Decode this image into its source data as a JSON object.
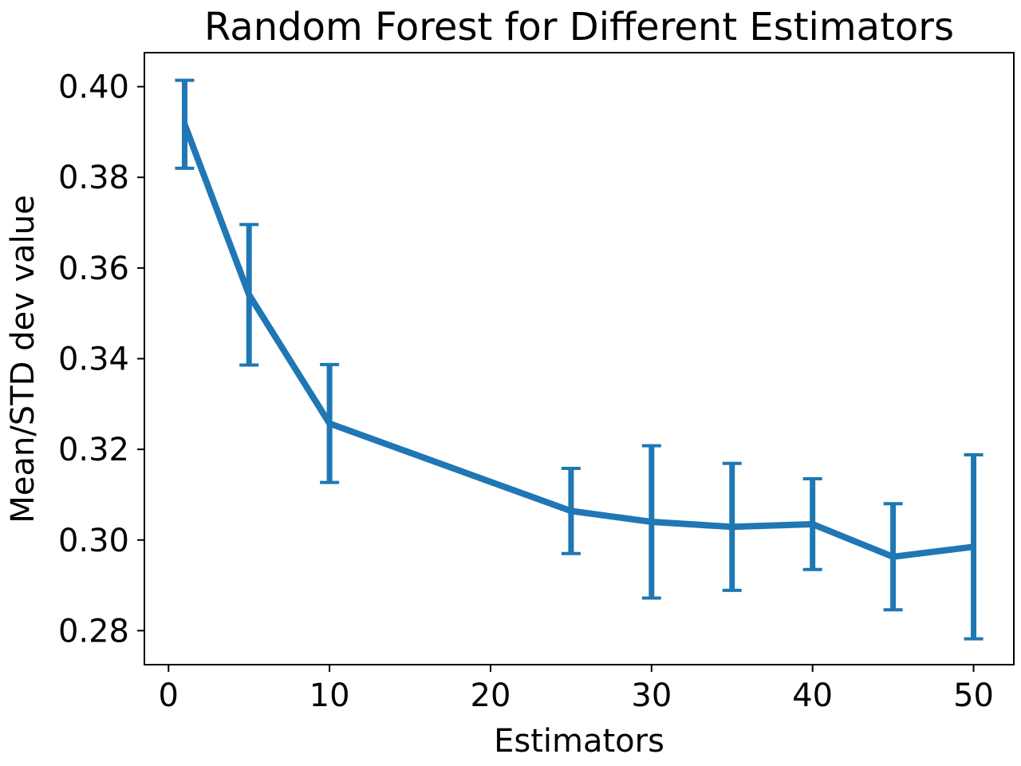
{
  "chart_data": {
    "type": "line",
    "title": "Random Forest for Different Estimators",
    "xlabel": "Estimators",
    "ylabel": "Mean/STD dev value",
    "xlim": [
      -1.5,
      52.5
    ],
    "ylim": [
      0.2725,
      0.4075
    ],
    "x_ticks": [
      0,
      10,
      20,
      30,
      40,
      50
    ],
    "y_ticks": [
      0.28,
      0.3,
      0.32,
      0.34,
      0.36,
      0.38,
      0.4
    ],
    "x_tick_labels": [
      "0",
      "10",
      "20",
      "30",
      "40",
      "50"
    ],
    "y_tick_labels": [
      "0.28",
      "0.30",
      "0.32",
      "0.34",
      "0.36",
      "0.38",
      "0.40"
    ],
    "grid": false,
    "series": [
      {
        "color": "#1f77b4",
        "x": [
          1,
          5,
          10,
          25,
          30,
          35,
          40,
          45,
          50
        ],
        "y": [
          0.3917,
          0.3541,
          0.3257,
          0.3064,
          0.304,
          0.3029,
          0.3035,
          0.2963,
          0.2985
        ],
        "error": [
          0.0097,
          0.0155,
          0.013,
          0.0094,
          0.0168,
          0.014,
          0.01,
          0.0117,
          0.0203
        ]
      }
    ]
  }
}
